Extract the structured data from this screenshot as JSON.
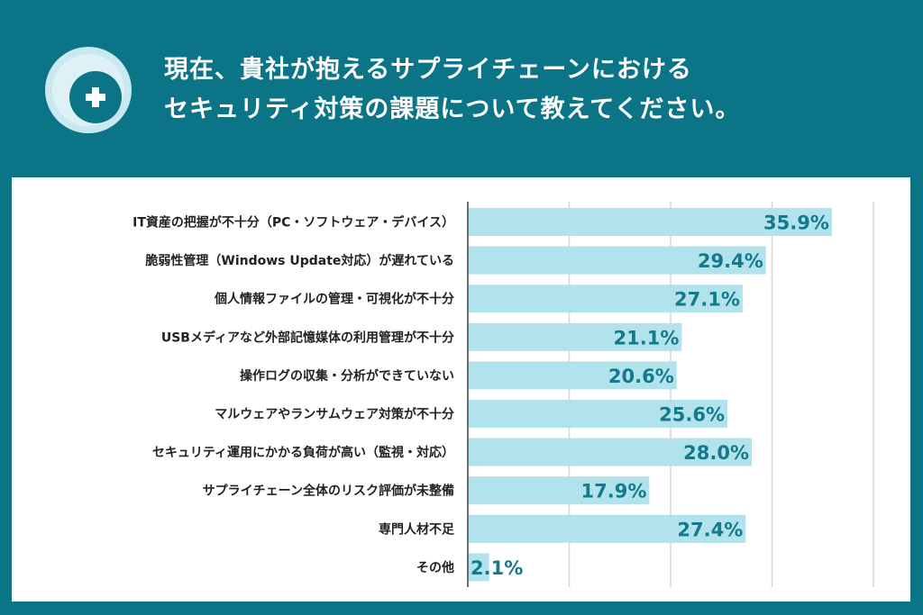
{
  "header": {
    "icon": "plus-circle-icon",
    "title_line1": "現在、貴社が抱えるサプライチェーンにおける",
    "title_line2": "セキュリティ対策の課題について教えてください。"
  },
  "colors": {
    "background": "#0b7487",
    "bar": "#b2e2ec",
    "value_label": "#137a8c"
  },
  "chart_data": {
    "type": "bar",
    "orientation": "horizontal",
    "categories": [
      "IT資産の把握が不十分（PC・ソフトウェア・デバイス）",
      "脆弱性管理（Windows Update対応）が遅れている",
      "個人情報ファイルの管理・可視化が不十分",
      "USBメディアなど外部記憶媒体の利用管理が不十分",
      "操作ログの収集・分析ができていない",
      "マルウェアやランサムウェア対策が不十分",
      "セキュリティ運用にかかる負荷が高い（監視・対応）",
      "サプライチェーン全体のリスク評価が未整備",
      "専門人材不足",
      "その他"
    ],
    "values": [
      35.9,
      29.4,
      27.1,
      21.1,
      20.6,
      25.6,
      28.0,
      17.9,
      27.4,
      2.1
    ],
    "value_labels": [
      "35.9%",
      "29.4%",
      "27.1%",
      "21.1%",
      "20.6%",
      "25.6%",
      "28.0%",
      "17.9%",
      "27.4%",
      "2.1%"
    ],
    "xlim": [
      0,
      40
    ],
    "grid": true,
    "grid_step": 10
  }
}
